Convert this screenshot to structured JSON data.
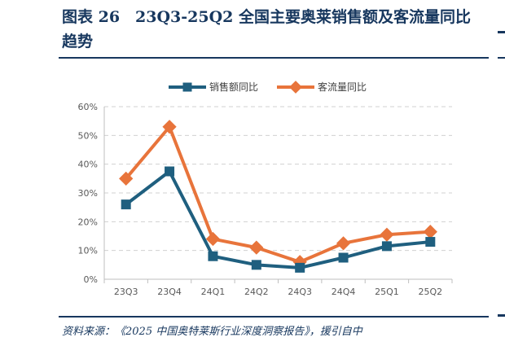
{
  "figure": {
    "title": "图表 26　23Q3-25Q2 全国主要奥莱销售额及客流量同比趋势",
    "source": "资料来源：《2025 中国奥特莱斯行业深度洞察报告》，援引自中"
  },
  "colors": {
    "header": "#17375e",
    "sales_series": "#1f5f7f",
    "traffic_series": "#e8743b",
    "grid": "#d0d0d0",
    "axis": "#bfbfbf",
    "tick_text": "#595959"
  },
  "chart_data": {
    "type": "line",
    "categories": [
      "23Q3",
      "23Q4",
      "24Q1",
      "24Q2",
      "24Q3",
      "24Q4",
      "25Q1",
      "25Q2"
    ],
    "series": [
      {
        "name": "销售额同比",
        "values": [
          26,
          37.5,
          8,
          5,
          4,
          7.5,
          11.5,
          13
        ],
        "color": "#1f5f7f",
        "marker": "square"
      },
      {
        "name": "客流量同比",
        "values": [
          35,
          53,
          14,
          11,
          6,
          12.5,
          15.5,
          16.5
        ],
        "color": "#e8743b",
        "marker": "diamond"
      }
    ],
    "ylim": [
      0,
      60
    ],
    "yticks": [
      0,
      10,
      20,
      30,
      40,
      50,
      60
    ],
    "ytick_labels": [
      "0%",
      "10%",
      "20%",
      "30%",
      "40%",
      "50%",
      "60%"
    ],
    "grid": true,
    "legend_position": "top"
  }
}
